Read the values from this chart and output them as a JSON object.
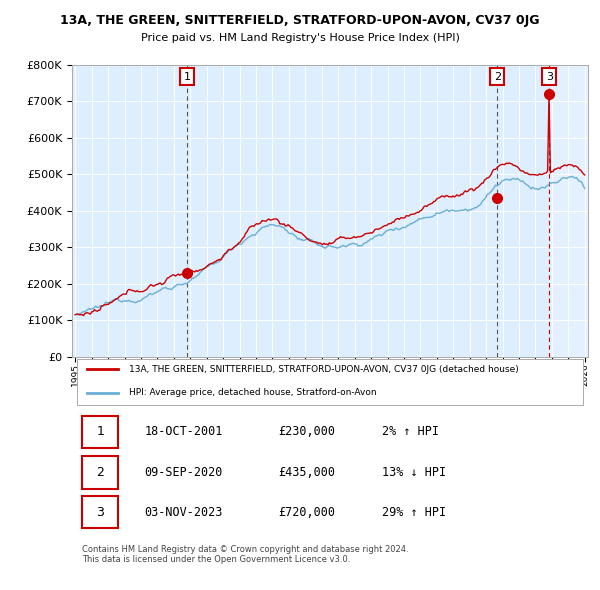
{
  "title": "13A, THE GREEN, SNITTERFIELD, STRATFORD-UPON-AVON, CV37 0JG",
  "subtitle": "Price paid vs. HM Land Registry's House Price Index (HPI)",
  "legend_line1": "13A, THE GREEN, SNITTERFIELD, STRATFORD-UPON-AVON, CV37 0JG (detached house)",
  "legend_line2": "HPI: Average price, detached house, Stratford-on-Avon",
  "table_rows": [
    {
      "num": "1",
      "date": "18-OCT-2001",
      "price": "£230,000",
      "hpi": "2% ↑ HPI"
    },
    {
      "num": "2",
      "date": "09-SEP-2020",
      "price": "£435,000",
      "hpi": "13% ↓ HPI"
    },
    {
      "num": "3",
      "date": "03-NOV-2023",
      "price": "£720,000",
      "hpi": "29% ↑ HPI"
    }
  ],
  "footer": "Contains HM Land Registry data © Crown copyright and database right 2024.\nThis data is licensed under the Open Government Licence v3.0.",
  "hpi_color": "#6baed6",
  "price_color": "#cc0000",
  "marker_color": "#cc0000",
  "bg_color": "#ddeeff",
  "grid_color": "#aaaacc",
  "annotation_color": "#cc0000",
  "dashed_line_color": "#555555",
  "sale_marker_color": "#cc0000",
  "ylim": [
    0,
    800000
  ],
  "yticks": [
    0,
    100000,
    200000,
    300000,
    400000,
    500000,
    600000,
    700000,
    800000
  ],
  "start_year": 1995,
  "end_year": 2026,
  "sale1_year": 2001.79,
  "sale1_price": 230000,
  "sale2_year": 2020.68,
  "sale2_price": 435000,
  "sale3_year": 2023.84,
  "sale3_price": 720000
}
